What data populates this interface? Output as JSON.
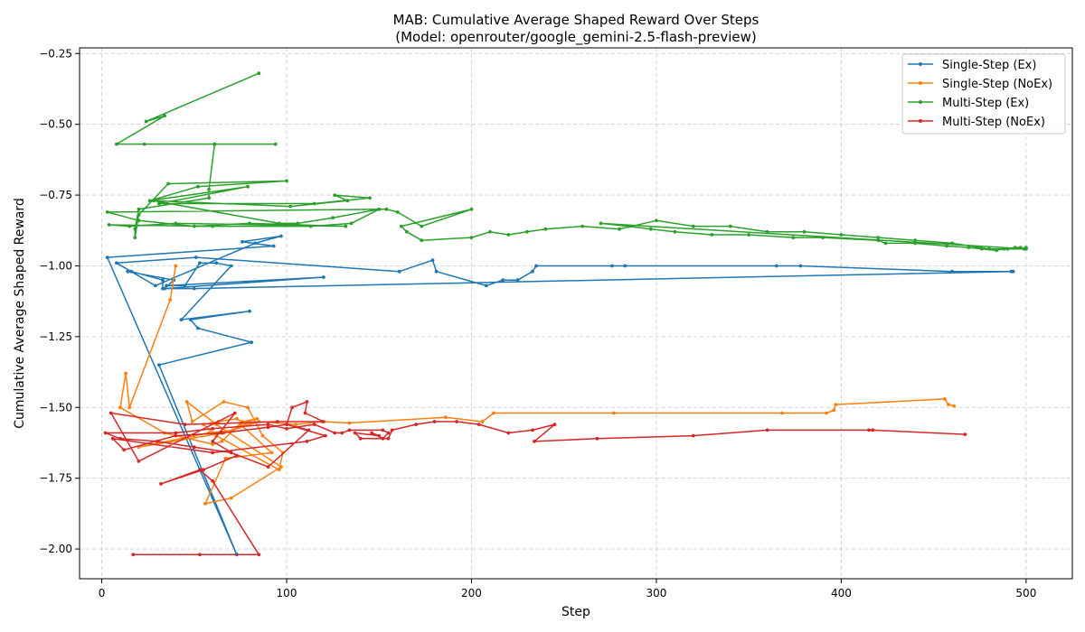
{
  "chart_data": {
    "type": "line",
    "title": "MAB: Cumulative Average Shaped Reward Over Steps",
    "subtitle": "(Model: openrouter/google_gemini-2.5-flash-preview)",
    "xlabel": "Step",
    "ylabel": "Cumulative Average Shaped Reward",
    "xlim": [
      -12,
      525
    ],
    "ylim": [
      -2.105,
      -0.23
    ],
    "xticks": [
      0,
      100,
      200,
      300,
      400,
      500
    ],
    "yticks": [
      -2.0,
      -1.75,
      -1.5,
      -1.25,
      -1.0,
      -0.75,
      -0.5,
      -0.25
    ],
    "grid": true,
    "legend_position": "top-right",
    "series": [
      {
        "name": "Single-Step (Ex)",
        "color": "#1f77b4",
        "x": [
          73,
          3,
          93,
          76,
          97,
          83,
          29,
          8,
          51,
          161,
          179,
          181,
          208,
          217,
          225,
          233,
          235,
          276,
          283,
          365,
          378,
          460,
          492,
          493,
          50,
          33,
          33,
          16,
          14,
          39,
          34,
          120,
          35,
          45,
          53,
          62,
          70,
          43,
          80,
          48,
          52,
          81,
          31,
          73
        ],
        "y": [
          -2.02,
          -0.97,
          -0.93,
          -0.915,
          -0.895,
          -0.92,
          -1.07,
          -0.99,
          -0.97,
          -1.02,
          -0.98,
          -1.02,
          -1.07,
          -1.05,
          -1.05,
          -1.02,
          -1.0,
          -1.0,
          -1.0,
          -1.0,
          -1.0,
          -1.02,
          -1.02,
          -1.02,
          -1.08,
          -1.08,
          -1.05,
          -1.02,
          -1.02,
          -1.05,
          -1.08,
          -1.04,
          -1.07,
          -1.07,
          -0.99,
          -0.99,
          -1.0,
          -1.19,
          -1.16,
          -1.19,
          -1.22,
          -1.27,
          -1.35,
          -2.02
        ]
      },
      {
        "name": "Single-Step (NoEx)",
        "color": "#ff7f0e",
        "x": [
          40,
          37,
          15,
          13,
          10,
          34,
          60,
          65,
          76,
          84,
          75,
          92,
          67,
          56,
          70,
          97,
          62,
          46,
          49,
          66,
          79,
          87,
          98,
          96,
          62,
          55,
          63,
          73,
          78,
          66,
          20,
          50,
          58,
          71,
          80,
          85,
          105,
          119,
          134,
          186,
          206,
          212,
          277,
          368,
          392,
          396,
          397,
          456,
          458,
          461
        ],
        "y": [
          -1.0,
          -1.12,
          -1.5,
          -1.38,
          -1.5,
          -1.59,
          -1.63,
          -1.62,
          -1.55,
          -1.54,
          -1.56,
          -1.66,
          -1.68,
          -1.84,
          -1.82,
          -1.71,
          -1.56,
          -1.48,
          -1.55,
          -1.48,
          -1.5,
          -1.6,
          -1.66,
          -1.72,
          -1.6,
          -1.56,
          -1.55,
          -1.54,
          -1.56,
          -1.59,
          -1.64,
          -1.6,
          -1.59,
          -1.58,
          -1.56,
          -1.55,
          -1.56,
          -1.55,
          -1.555,
          -1.535,
          -1.55,
          -1.52,
          -1.52,
          -1.52,
          -1.52,
          -1.51,
          -1.49,
          -1.47,
          -1.49,
          -1.495
        ]
      },
      {
        "name": "Multi-Step (Ex)",
        "color": "#2ca02c",
        "x": [
          85,
          24,
          34,
          8,
          61,
          23,
          94,
          61,
          58,
          58,
          20,
          18,
          18,
          20,
          36,
          100,
          52,
          26,
          79,
          31,
          115,
          145,
          126,
          133,
          102,
          28,
          96,
          106,
          125,
          150,
          3,
          20,
          50,
          80,
          132,
          40,
          15,
          4,
          60,
          113,
          135,
          150,
          154,
          160,
          173,
          200,
          162,
          165,
          173,
          200,
          210,
          220,
          230,
          240,
          260,
          280,
          300,
          320,
          340,
          360,
          380,
          400,
          420,
          440,
          460,
          480,
          500,
          270,
          285,
          297,
          310,
          330,
          350,
          374,
          390,
          420,
          424,
          440,
          457,
          469,
          476,
          484,
          488,
          490,
          494,
          497,
          499,
          500
        ],
        "y": [
          -0.32,
          -0.49,
          -0.47,
          -0.57,
          -0.57,
          -0.57,
          -0.57,
          -0.57,
          -0.73,
          -0.76,
          -0.8,
          -0.87,
          -0.9,
          -0.82,
          -0.71,
          -0.7,
          -0.72,
          -0.77,
          -0.72,
          -0.78,
          -0.78,
          -0.76,
          -0.75,
          -0.77,
          -0.79,
          -0.77,
          -0.85,
          -0.85,
          -0.83,
          -0.8,
          -0.81,
          -0.84,
          -0.86,
          -0.85,
          -0.86,
          -0.85,
          -0.86,
          -0.855,
          -0.86,
          -0.86,
          -0.85,
          -0.8,
          -0.8,
          -0.81,
          -0.86,
          -0.8,
          -0.86,
          -0.88,
          -0.91,
          -0.9,
          -0.88,
          -0.89,
          -0.88,
          -0.87,
          -0.86,
          -0.87,
          -0.84,
          -0.86,
          -0.86,
          -0.88,
          -0.88,
          -0.89,
          -0.9,
          -0.91,
          -0.92,
          -0.94,
          -0.94,
          -0.85,
          -0.86,
          -0.87,
          -0.88,
          -0.89,
          -0.89,
          -0.9,
          -0.9,
          -0.91,
          -0.92,
          -0.92,
          -0.93,
          -0.935,
          -0.94,
          -0.945,
          -0.94,
          -0.94,
          -0.935,
          -0.935,
          -0.94,
          -0.935
        ]
      },
      {
        "name": "Multi-Step (NoEx)",
        "color": "#d62728",
        "x": [
          17,
          53,
          85,
          60,
          53,
          32,
          55,
          73,
          60,
          72,
          20,
          5,
          45,
          95,
          120,
          110,
          111,
          103,
          100,
          121,
          111,
          60,
          6,
          12,
          40,
          65,
          90,
          100,
          112,
          90,
          70,
          50,
          30,
          10,
          2,
          40,
          60,
          90,
          100,
          115,
          126,
          130,
          134,
          152,
          155,
          152,
          146,
          150,
          137,
          140,
          155,
          157,
          170,
          180,
          192,
          204,
          220,
          233,
          245,
          234,
          268,
          320,
          360,
          415,
          417,
          467
        ],
        "y": [
          -2.02,
          -2.02,
          -2.02,
          -1.76,
          -1.72,
          -1.77,
          -1.72,
          -1.67,
          -1.62,
          -1.52,
          -1.69,
          -1.52,
          -1.56,
          -1.55,
          -1.55,
          -1.52,
          -1.48,
          -1.5,
          -1.56,
          -1.6,
          -1.62,
          -1.66,
          -1.61,
          -1.65,
          -1.6,
          -1.59,
          -1.57,
          -1.56,
          -1.58,
          -1.71,
          -1.66,
          -1.64,
          -1.62,
          -1.61,
          -1.59,
          -1.59,
          -1.575,
          -1.56,
          -1.575,
          -1.56,
          -1.59,
          -1.59,
          -1.58,
          -1.58,
          -1.59,
          -1.61,
          -1.59,
          -1.6,
          -1.59,
          -1.61,
          -1.61,
          -1.58,
          -1.56,
          -1.55,
          -1.55,
          -1.56,
          -1.59,
          -1.58,
          -1.56,
          -1.62,
          -1.61,
          -1.6,
          -1.58,
          -1.58,
          -1.58,
          -1.595
        ]
      }
    ]
  }
}
